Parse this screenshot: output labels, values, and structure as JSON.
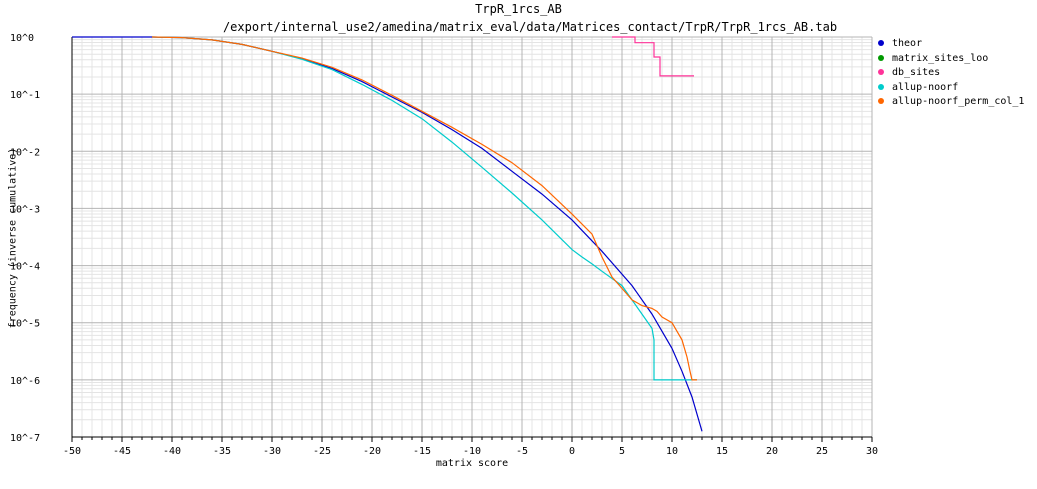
{
  "chart_data": {
    "type": "line",
    "title": "TrpR_1rcs_AB",
    "subtitle": "/export/internal_use2/amedina/matrix_eval/data/Matrices_contact/TrpR/TrpR_1rcs_AB.tab",
    "xlabel": "matrix score",
    "ylabel": "frequency (inverse cumulative)",
    "xlim": [
      -50,
      30
    ],
    "ylim_log10": [
      -7,
      0
    ],
    "y_scale": "log10",
    "x_ticks": [
      -50,
      -45,
      -40,
      -35,
      -30,
      -25,
      -20,
      -15,
      -10,
      -5,
      0,
      5,
      10,
      15,
      20,
      25,
      30
    ],
    "y_ticks": [
      "10^0",
      "10^-1",
      "10^-2",
      "10^-3",
      "10^-4",
      "10^-5",
      "10^-6",
      "10^-7"
    ],
    "grid": true,
    "legend_position": "right",
    "series": [
      {
        "name": "theor",
        "color": "#0000cc",
        "x": [
          -50,
          -42,
          -39,
          -36,
          -33,
          -30,
          -27,
          -24,
          -21,
          -18,
          -15,
          -12,
          -9,
          -6,
          -3,
          0,
          3,
          6,
          8,
          10,
          11,
          12,
          13
        ],
        "log10y": [
          0,
          0,
          -0.01,
          -0.05,
          -0.13,
          -0.25,
          -0.38,
          -0.55,
          -0.78,
          -1.05,
          -1.32,
          -1.62,
          -1.95,
          -2.35,
          -2.75,
          -3.2,
          -3.75,
          -4.35,
          -4.85,
          -5.45,
          -5.85,
          -6.3,
          -6.9
        ]
      },
      {
        "name": "matrix_sites_loo",
        "color": "#009900",
        "x": [],
        "log10y": []
      },
      {
        "name": "db_sites",
        "color": "#ff3399",
        "x": [
          4,
          6.3,
          6.3,
          8.2,
          8.2,
          8.8,
          8.8,
          12.2
        ],
        "log10y": [
          0,
          0,
          -0.1,
          -0.1,
          -0.35,
          -0.35,
          -0.68,
          -0.68
        ]
      },
      {
        "name": "allup-noorf",
        "color": "#00cccc",
        "x": [
          -42,
          -39,
          -36,
          -33,
          -30,
          -27,
          -24,
          -21,
          -18,
          -15,
          -12,
          -9,
          -6,
          -3,
          0,
          1,
          2,
          3,
          5,
          6,
          7,
          8,
          8.2,
          8.2,
          8.5,
          12.5
        ],
        "log10y": [
          0,
          -0.01,
          -0.05,
          -0.13,
          -0.25,
          -0.39,
          -0.57,
          -0.83,
          -1.11,
          -1.43,
          -1.84,
          -2.28,
          -2.73,
          -3.2,
          -3.72,
          -3.85,
          -3.97,
          -4.1,
          -4.35,
          -4.6,
          -4.85,
          -5.1,
          -5.3,
          -6.0,
          -6.0,
          -6.0
        ]
      },
      {
        "name": "allup-noorf_perm_col_1",
        "color": "#ff6600",
        "x": [
          -42,
          -39,
          -36,
          -33,
          -30,
          -27,
          -24,
          -21,
          -18,
          -15,
          -12,
          -9,
          -6,
          -3,
          0,
          2,
          3,
          4,
          5,
          6,
          7,
          8,
          8.5,
          9,
          10,
          11,
          11.5,
          11.8,
          12,
          12.5
        ],
        "log10y": [
          0,
          -0.01,
          -0.05,
          -0.13,
          -0.25,
          -0.37,
          -0.53,
          -0.75,
          -1.02,
          -1.3,
          -1.58,
          -1.88,
          -2.2,
          -2.6,
          -3.1,
          -3.45,
          -3.85,
          -4.2,
          -4.4,
          -4.6,
          -4.7,
          -4.75,
          -4.8,
          -4.9,
          -5.0,
          -5.3,
          -5.6,
          -5.85,
          -6.0,
          -6.0
        ]
      }
    ]
  }
}
